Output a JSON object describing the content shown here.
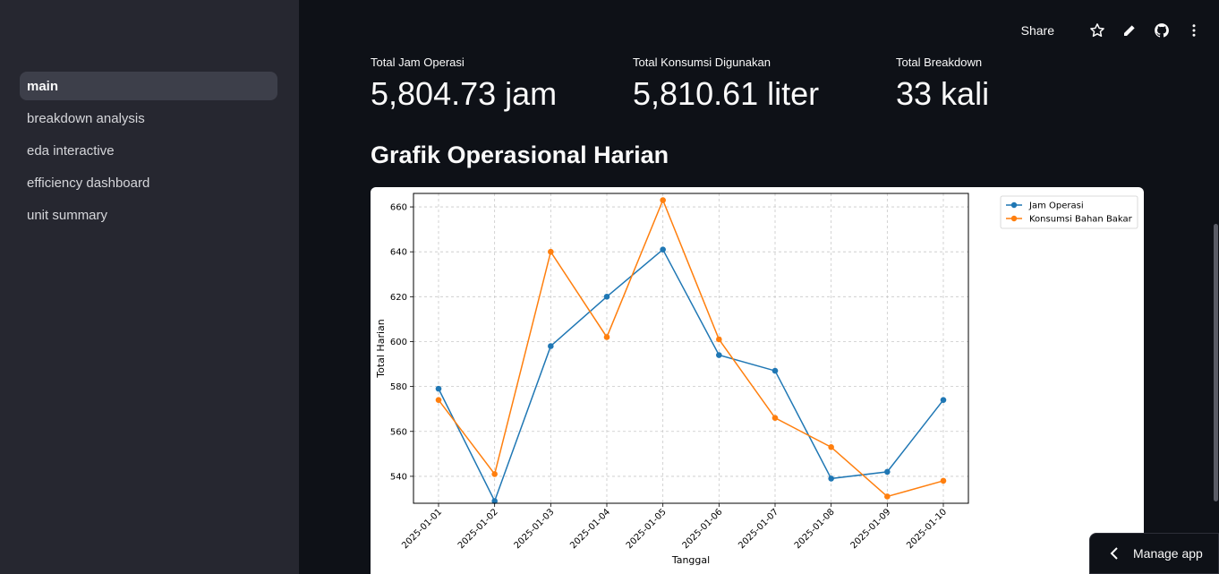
{
  "sidebar": {
    "items": [
      {
        "label": "main",
        "active": true
      },
      {
        "label": "breakdown analysis",
        "active": false
      },
      {
        "label": "eda interactive",
        "active": false
      },
      {
        "label": "efficiency dashboard",
        "active": false
      },
      {
        "label": "unit summary",
        "active": false
      }
    ]
  },
  "toolbar": {
    "share_label": "Share",
    "icons": [
      "star-icon",
      "pencil-icon",
      "github-icon",
      "more-vertical-icon"
    ]
  },
  "metrics": [
    {
      "label": "Total Jam Operasi",
      "value": "5,804.73 jam"
    },
    {
      "label": "Total Konsumsi Digunakan",
      "value": "5,810.61 liter"
    },
    {
      "label": "Total Breakdown",
      "value": "33 kali"
    }
  ],
  "section": {
    "title": "Grafik Operasional Harian"
  },
  "manage_app": {
    "label": "Manage app"
  },
  "colors": {
    "series1": "#1f77b4",
    "series2": "#ff7f0e",
    "background": "#0e1117",
    "sidebar": "#262730"
  },
  "chart_data": {
    "type": "line",
    "xlabel": "Tanggal",
    "ylabel": "Total Harian",
    "x": [
      "2025-01-01",
      "2025-01-02",
      "2025-01-03",
      "2025-01-04",
      "2025-01-05",
      "2025-01-06",
      "2025-01-07",
      "2025-01-08",
      "2025-01-09",
      "2025-01-10"
    ],
    "ylim": [
      528,
      666
    ],
    "yticks": [
      540,
      560,
      580,
      600,
      620,
      640,
      660
    ],
    "grid": true,
    "legend_position": "outside-top-right",
    "series": [
      {
        "name": "Jam Operasi",
        "color": "#1f77b4",
        "values": [
          579,
          529,
          598,
          620,
          641,
          594,
          587,
          539,
          542,
          574
        ]
      },
      {
        "name": "Konsumsi Bahan Bakar",
        "color": "#ff7f0e",
        "values": [
          574,
          541,
          640,
          602,
          663,
          601,
          566,
          553,
          531,
          538
        ]
      }
    ]
  }
}
